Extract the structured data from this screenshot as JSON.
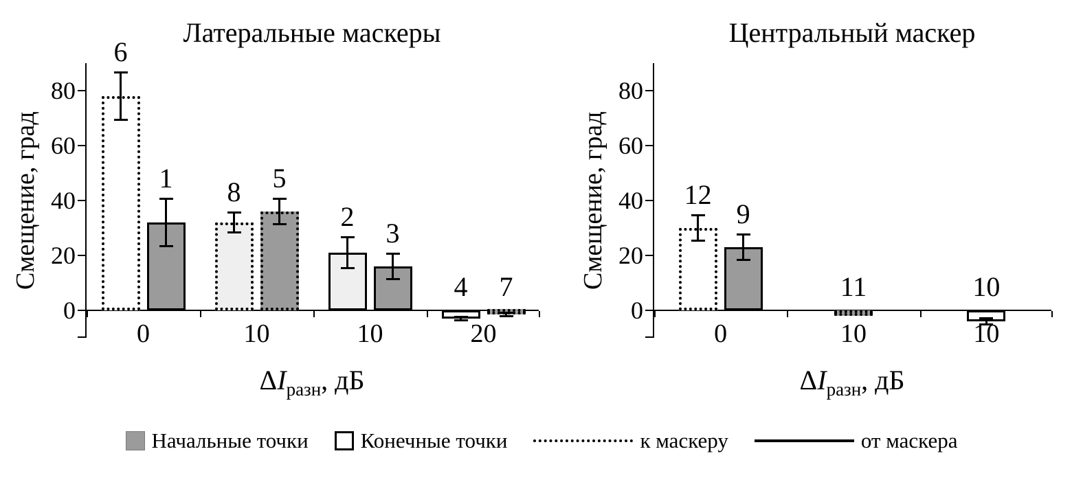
{
  "colors": {
    "bar_gray": "#9b9b9b",
    "bar_lightgray": "#efefef",
    "bar_white": "#ffffff",
    "axis": "#000000"
  },
  "legend": {
    "items": [
      {
        "swatch": "gray-square",
        "label": "Начальные точки"
      },
      {
        "swatch": "white-square",
        "label": "Конечные точки"
      },
      {
        "swatch": "dotted-line",
        "label": "к маскеру"
      },
      {
        "swatch": "solid-line",
        "label": "от маскера"
      }
    ]
  },
  "chart_data": [
    {
      "type": "bar",
      "title": "Латеральные маскеры",
      "ylabel": "Смещение, град",
      "xlabel_parts": {
        "delta": "Δ",
        "symbol": "I",
        "subscript": "разн",
        "suffix": ", дБ"
      },
      "ylim": [
        -10,
        90
      ],
      "yticks": [
        0,
        20,
        40,
        60,
        80
      ],
      "categories": [
        "0",
        "10",
        "10",
        "20"
      ],
      "bars": [
        {
          "group": 0,
          "label": "6",
          "value": 78,
          "error": 9,
          "fill": "white",
          "border": "dotted"
        },
        {
          "group": 0,
          "label": "1",
          "value": 32,
          "error": 9,
          "fill": "gray",
          "border": "solid"
        },
        {
          "group": 1,
          "label": "8",
          "value": 32,
          "error": 4,
          "fill": "lightgray",
          "border": "dotted"
        },
        {
          "group": 1,
          "label": "5",
          "value": 36,
          "error": 5,
          "fill": "gray",
          "border": "dotted"
        },
        {
          "group": 2,
          "label": "2",
          "value": 21,
          "error": 6,
          "fill": "lightgray",
          "border": "solid"
        },
        {
          "group": 2,
          "label": "3",
          "value": 16,
          "error": 5,
          "fill": "gray",
          "border": "solid"
        },
        {
          "group": 3,
          "label": "4",
          "value": -3,
          "error": 1,
          "fill": "white",
          "border": "solid"
        },
        {
          "group": 3,
          "label": "7",
          "value": -1.5,
          "error": 1,
          "fill": "gray",
          "border": "dotted"
        }
      ]
    },
    {
      "type": "bar",
      "title": "Центральный маскер",
      "ylabel": "Смещение, град",
      "xlabel_parts": {
        "delta": "Δ",
        "symbol": "I",
        "subscript": "разн",
        "suffix": ", дБ"
      },
      "ylim": [
        -10,
        90
      ],
      "yticks": [
        0,
        20,
        40,
        60,
        80
      ],
      "categories": [
        "0",
        "10",
        "10"
      ],
      "bars": [
        {
          "group": 0,
          "label": "12",
          "value": 30,
          "error": 5,
          "fill": "white",
          "border": "dotted"
        },
        {
          "group": 0,
          "label": "9",
          "value": 23,
          "error": 5,
          "fill": "gray",
          "border": "solid"
        },
        {
          "group": 1,
          "label": "11",
          "value": -2,
          "error": 0,
          "fill": "gray",
          "border": "dotted"
        },
        {
          "group": 2,
          "label": "10",
          "value": -4,
          "error": 1.5,
          "fill": "white",
          "border": "solid"
        }
      ]
    }
  ]
}
